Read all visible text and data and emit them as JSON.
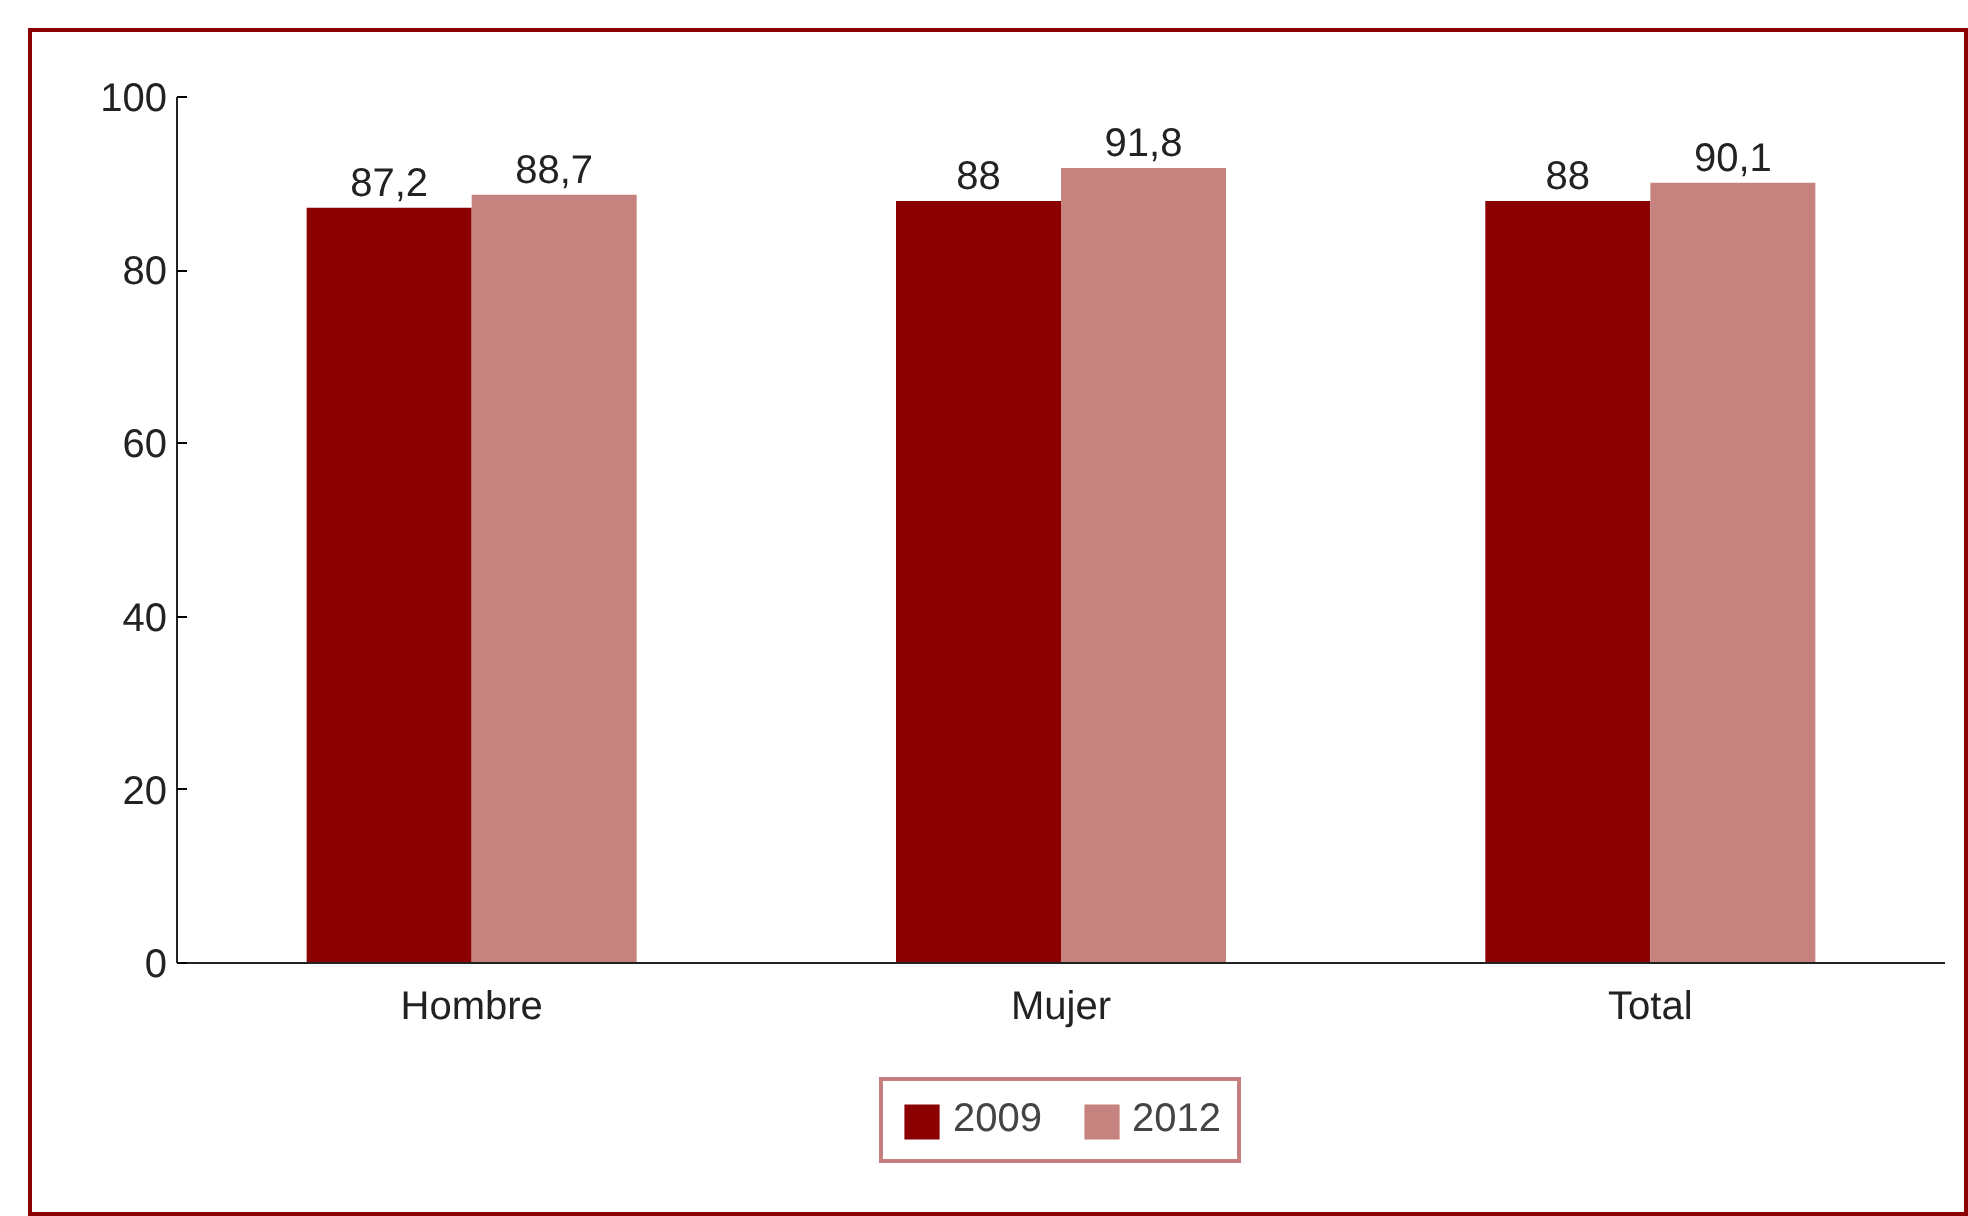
{
  "chart_data": {
    "type": "bar",
    "categories": [
      "Hombre",
      "Mujer",
      "Total"
    ],
    "series": [
      {
        "name": "2009",
        "color": "#8b0000",
        "values": [
          87.2,
          88,
          88
        ],
        "value_labels": [
          "87,2",
          "88",
          "88"
        ]
      },
      {
        "name": "2012",
        "color": "#c6827f",
        "values": [
          88.7,
          91.8,
          90.1
        ],
        "value_labels": [
          "88,7",
          "91,8",
          "90,1"
        ]
      }
    ],
    "ylim": [
      0,
      100
    ],
    "yticks": [
      0,
      20,
      40,
      60,
      80,
      100
    ],
    "grid": false,
    "legend": "bottom"
  }
}
